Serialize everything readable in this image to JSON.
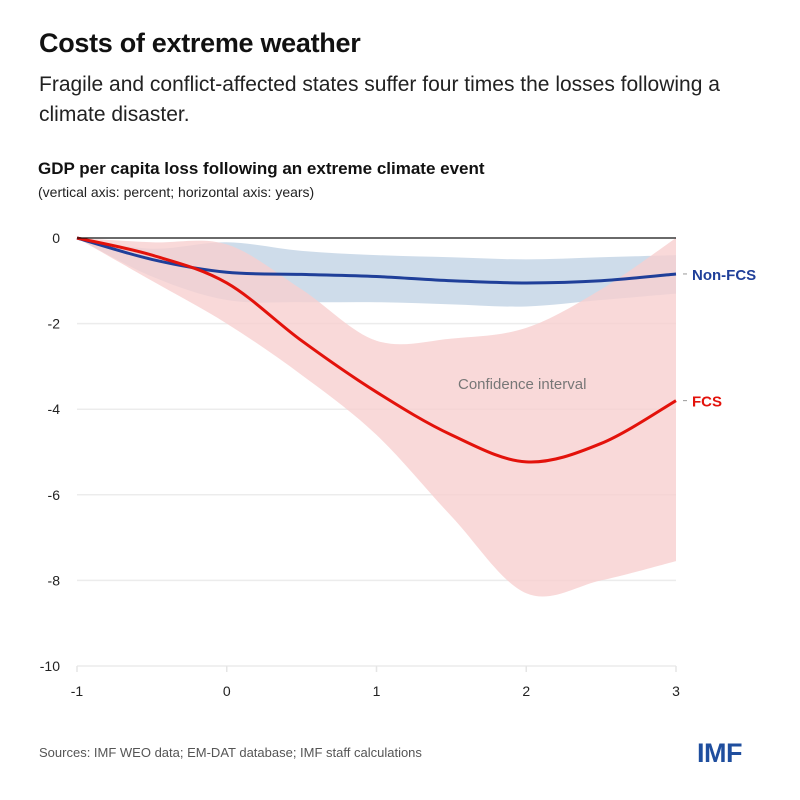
{
  "header": {
    "title": "Costs of extreme weather",
    "subtitle": "Fragile and conflict-affected states suffer four times the losses following a climate disaster."
  },
  "footer": {
    "source": "Sources: IMF WEO data; EM-DAT database; IMF staff calculations",
    "logo": "IMF"
  },
  "chart_data": {
    "type": "line",
    "title": "GDP per capita loss following an extreme climate event",
    "subtitle": "(vertical axis: percent; horizontal axis: years)",
    "xlabel": "years",
    "ylabel": "percent",
    "xlim": [
      -1,
      3
    ],
    "ylim": [
      -10,
      0
    ],
    "x_ticks": [
      "-1",
      "0",
      "1",
      "2",
      "3"
    ],
    "y_ticks": [
      "0",
      "-2",
      "-4",
      "-6",
      "-8",
      "-10"
    ],
    "grid": true,
    "annotation": "Confidence interval",
    "x": [
      -1,
      -0.5,
      0,
      0.5,
      1,
      1.5,
      2,
      2.5,
      3
    ],
    "series": [
      {
        "name": "Non-FCS",
        "color": "#1f3f99",
        "band_color": "#c9d8e8",
        "values": [
          0,
          -0.5,
          -0.8,
          -0.85,
          -0.9,
          -1.0,
          -1.05,
          -1.0,
          -0.84
        ],
        "upper": [
          0,
          -0.25,
          -0.1,
          -0.3,
          -0.4,
          -0.45,
          -0.5,
          -0.45,
          -0.4
        ],
        "lower": [
          0,
          -0.9,
          -1.45,
          -1.5,
          -1.5,
          -1.55,
          -1.6,
          -1.45,
          -1.3
        ]
      },
      {
        "name": "FCS",
        "color": "#e3120b",
        "band_color": "#f7cfd0",
        "values": [
          0,
          -0.4,
          -1.05,
          -2.4,
          -3.6,
          -4.6,
          -5.23,
          -4.8,
          -3.8
        ],
        "upper": [
          0,
          -0.1,
          -0.15,
          -1.2,
          -2.4,
          -2.35,
          -2.1,
          -1.2,
          0
        ],
        "lower": [
          0,
          -1.0,
          -2.0,
          -3.2,
          -4.6,
          -6.5,
          -8.3,
          -8.0,
          -7.55
        ]
      }
    ]
  }
}
